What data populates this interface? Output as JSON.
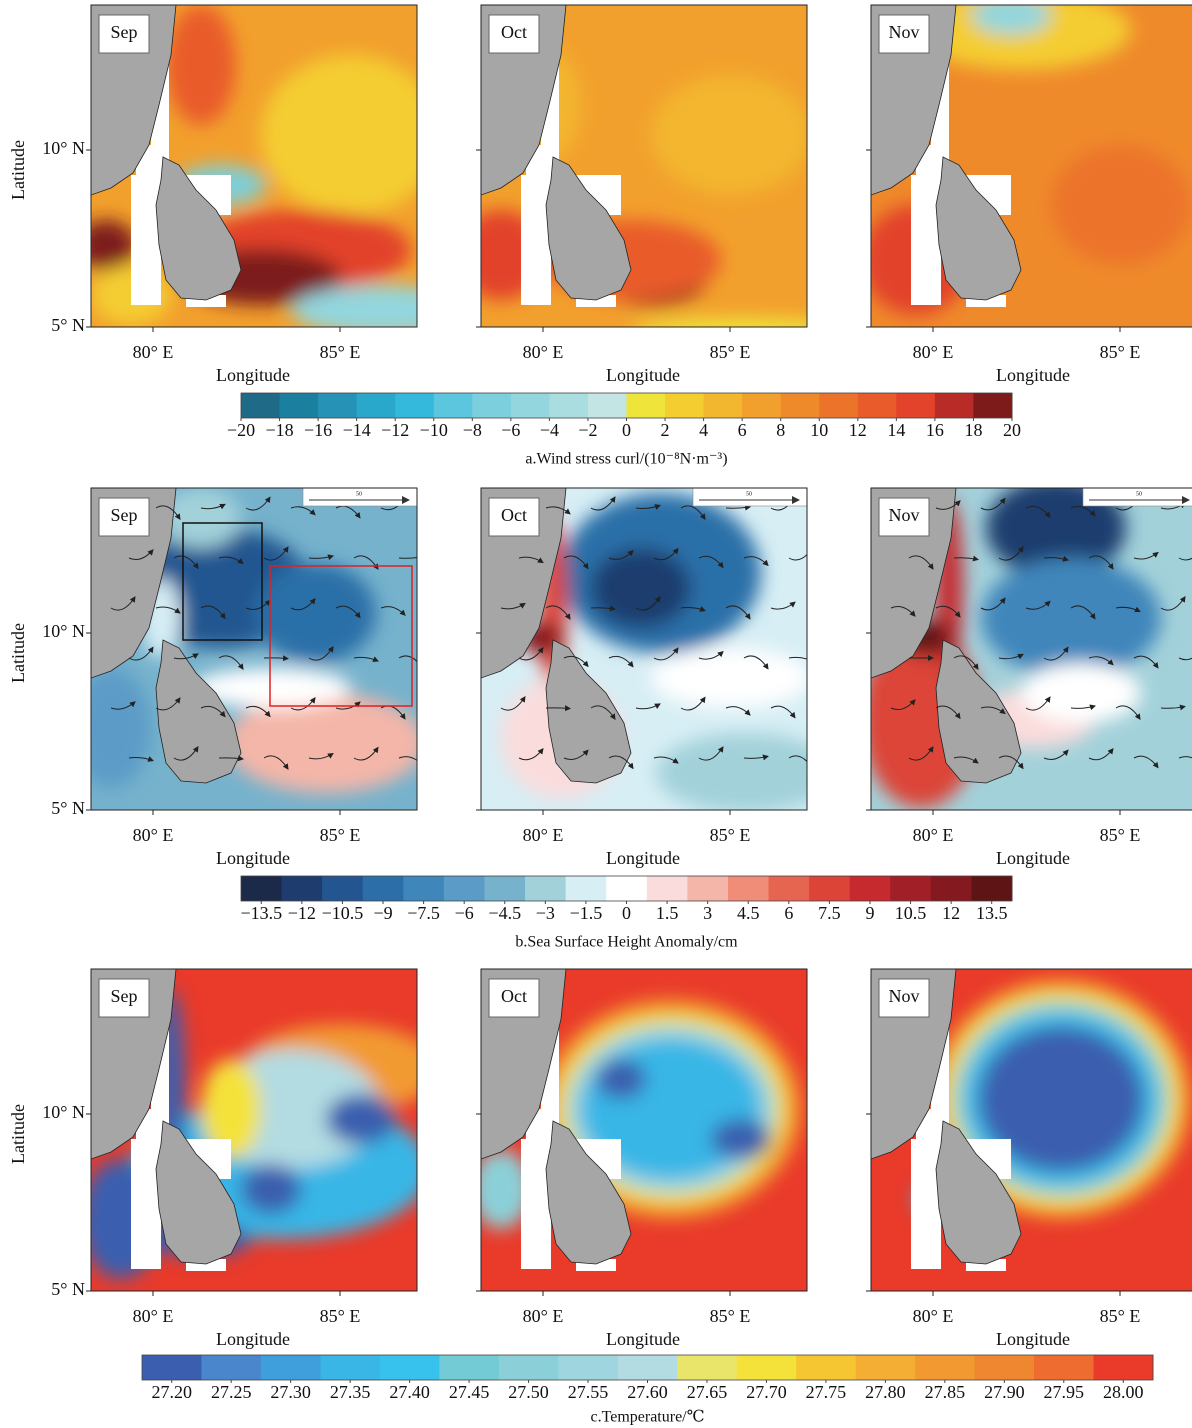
{
  "axes": {
    "y_label": "Latitude",
    "x_label": "Longitude",
    "y_ticks": [
      "10° N",
      "5° N"
    ],
    "x_ticks": [
      "80° E",
      "85° E"
    ]
  },
  "scale_label": "50",
  "rows": [
    {
      "panels": [
        "Sep",
        "Oct",
        "Nov"
      ],
      "colorbar": {
        "caption": "a.Wind stress curl/(10⁻⁸N·m⁻³)",
        "lim": [
          -20,
          20
        ],
        "colors": [
          "#1f6a86",
          "#1b7fa0",
          "#2693b6",
          "#2aa8cc",
          "#34b8dc",
          "#5cc6df",
          "#7ccfdc",
          "#93d6dd",
          "#a9dde0",
          "#c3e5e3",
          "#efe43a",
          "#f4cd30",
          "#f3b62f",
          "#f2a02d",
          "#ef8a2b",
          "#ec732a",
          "#e95b2a",
          "#e2432a",
          "#b82b26",
          "#7d1a1a"
        ],
        "ticks": [
          {
            "value": -20,
            "label": "−20"
          },
          {
            "value": -18,
            "label": "−18"
          },
          {
            "value": -16,
            "label": "−16"
          },
          {
            "value": -14,
            "label": "−14"
          },
          {
            "value": -12,
            "label": "−12"
          },
          {
            "value": -10,
            "label": "−10"
          },
          {
            "value": -8,
            "label": "−8"
          },
          {
            "value": -6,
            "label": "−6"
          },
          {
            "value": -4,
            "label": "−4"
          },
          {
            "value": -2,
            "label": "−2"
          },
          0,
          2,
          4,
          6,
          8,
          10,
          12,
          14,
          16,
          18,
          20
        ]
      }
    },
    {
      "panels": [
        "Sep",
        "Oct",
        "Nov"
      ],
      "colorbar": {
        "caption": "b.Sea Surface Height Anomaly/cm",
        "lim": [
          -14.25,
          14.25
        ],
        "colors": [
          "#1c2a4a",
          "#1f3c6e",
          "#235690",
          "#2c6fa8",
          "#3f86bb",
          "#5b9bc7",
          "#76b2cc",
          "#a3d1da",
          "#d7eef5",
          "#ffffff",
          "#fbdcdc",
          "#f4b6a8",
          "#ef8d78",
          "#e66550",
          "#dc4438",
          "#c62a2e",
          "#a11f27",
          "#84191f",
          "#5e1414"
        ],
        "ticks": [
          {
            "value": -13.5,
            "label": "−13.5"
          },
          {
            "value": -12,
            "label": "−12"
          },
          {
            "value": -10.5,
            "label": "−10.5"
          },
          {
            "value": -9,
            "label": "−9"
          },
          {
            "value": -7.5,
            "label": "−7.5"
          },
          {
            "value": -6,
            "label": "−6"
          },
          {
            "value": -4.5,
            "label": "−4.5"
          },
          {
            "value": -3,
            "label": "−3"
          },
          {
            "value": -1.5,
            "label": "−1.5"
          },
          0,
          1.5,
          3,
          4.5,
          6,
          7.5,
          9,
          10.5,
          12,
          13.5
        ]
      }
    },
    {
      "panels": [
        "Sep",
        "Oct",
        "Nov"
      ],
      "colorbar": {
        "caption": "c.Temperature/℃",
        "lim": [
          27.175,
          28.025
        ],
        "colors": [
          "#3b5fae",
          "#4a86cc",
          "#3f9fdc",
          "#39b6e6",
          "#36c2ec",
          "#72cbd5",
          "#8bd0d8",
          "#9fd5de",
          "#b2dbe2",
          "#e8e56a",
          "#f4e23a",
          "#f5c632",
          "#f4ae33",
          "#f29a31",
          "#ef8731",
          "#ee6c2f",
          "#e93a2a"
        ],
        "ticks": [
          {
            "value": 27.2,
            "label": "27.20"
          },
          27.25,
          {
            "value": 27.3,
            "label": "27.30"
          },
          27.35,
          {
            "value": 27.4,
            "label": "27.40"
          },
          27.45,
          {
            "value": 27.5,
            "label": "27.50"
          },
          27.55,
          {
            "value": 27.6,
            "label": "27.60"
          },
          27.65,
          {
            "value": 27.7,
            "label": "27.70"
          },
          27.75,
          {
            "value": 27.8,
            "label": "27.80"
          },
          27.85,
          {
            "value": 27.9,
            "label": "27.90"
          },
          27.95,
          {
            "value": 28,
            "label": "28.00"
          }
        ]
      }
    }
  ]
}
